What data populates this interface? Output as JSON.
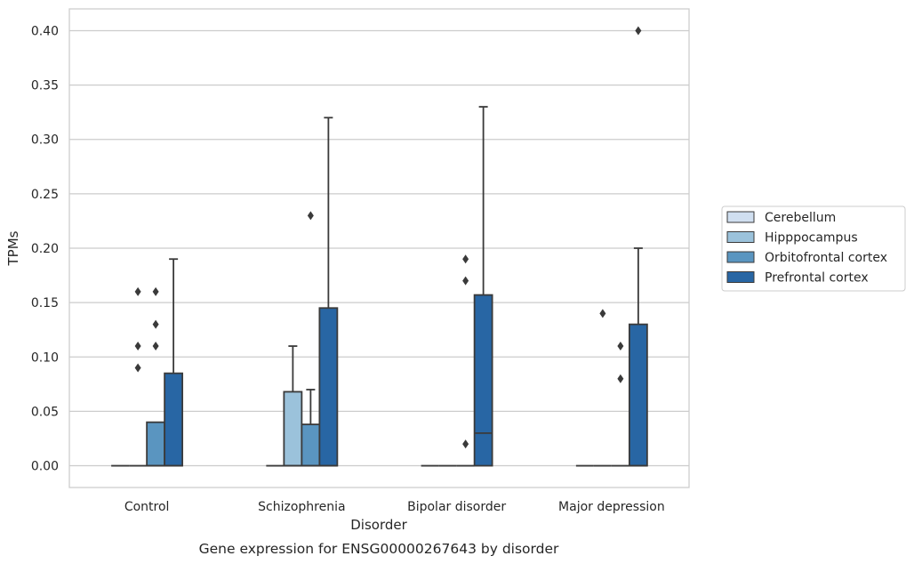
{
  "chart_data": {
    "type": "box",
    "caption": "Gene expression for ENSG00000267643 by disorder",
    "xlabel": "Disorder",
    "ylabel": "TPMs",
    "ylim": [
      -0.02,
      0.42
    ],
    "yticks": [
      "0.00",
      "0.05",
      "0.10",
      "0.15",
      "0.20",
      "0.25",
      "0.30",
      "0.35",
      "0.40"
    ],
    "grid": true,
    "legend_position": "right, outside plot",
    "categories": [
      "Control",
      "Schizophrenia",
      "Bipolar disorder",
      "Major depression"
    ],
    "series": [
      {
        "name": "Cerebellum",
        "color": "#d0dff0",
        "boxes": [
          {
            "category": "Control",
            "q1": 0.0,
            "median": 0.0,
            "q3": 0.0,
            "whisker_low": 0.0,
            "whisker_high": 0.0,
            "outliers": []
          },
          {
            "category": "Schizophrenia",
            "q1": 0.0,
            "median": 0.0,
            "q3": 0.0,
            "whisker_low": 0.0,
            "whisker_high": 0.0,
            "outliers": []
          },
          {
            "category": "Bipolar disorder",
            "q1": 0.0,
            "median": 0.0,
            "q3": 0.0,
            "whisker_low": 0.0,
            "whisker_high": 0.0,
            "outliers": []
          },
          {
            "category": "Major depression",
            "q1": 0.0,
            "median": 0.0,
            "q3": 0.0,
            "whisker_low": 0.0,
            "whisker_high": 0.0,
            "outliers": []
          }
        ]
      },
      {
        "name": "Hipppocampus",
        "color": "#9bc2db",
        "boxes": [
          {
            "category": "Control",
            "q1": 0.0,
            "median": 0.0,
            "q3": 0.0,
            "whisker_low": 0.0,
            "whisker_high": 0.0,
            "outliers": [
              0.09,
              0.11,
              0.16
            ]
          },
          {
            "category": "Schizophrenia",
            "q1": 0.0,
            "median": 0.0,
            "q3": 0.068,
            "whisker_low": 0.0,
            "whisker_high": 0.11,
            "outliers": []
          },
          {
            "category": "Bipolar disorder",
            "q1": 0.0,
            "median": 0.0,
            "q3": 0.0,
            "whisker_low": 0.0,
            "whisker_high": 0.0,
            "outliers": []
          },
          {
            "category": "Major depression",
            "q1": 0.0,
            "median": 0.0,
            "q3": 0.0,
            "whisker_low": 0.0,
            "whisker_high": 0.0,
            "outliers": [
              0.14
            ]
          }
        ]
      },
      {
        "name": "Orbitofrontal cortex",
        "color": "#5a95c0",
        "boxes": [
          {
            "category": "Control",
            "q1": 0.0,
            "median": 0.0,
            "q3": 0.04,
            "whisker_low": 0.0,
            "whisker_high": 0.04,
            "outliers": [
              0.11,
              0.13,
              0.16
            ]
          },
          {
            "category": "Schizophrenia",
            "q1": 0.0,
            "median": 0.0,
            "q3": 0.038,
            "whisker_low": 0.0,
            "whisker_high": 0.07,
            "outliers": [
              0.23
            ]
          },
          {
            "category": "Bipolar disorder",
            "q1": 0.0,
            "median": 0.0,
            "q3": 0.0,
            "whisker_low": 0.0,
            "whisker_high": 0.0,
            "outliers": [
              0.02,
              0.17,
              0.19
            ]
          },
          {
            "category": "Major depression",
            "q1": 0.0,
            "median": 0.0,
            "q3": 0.0,
            "whisker_low": 0.0,
            "whisker_high": 0.0,
            "outliers": [
              0.08,
              0.11
            ]
          }
        ]
      },
      {
        "name": "Prefrontal cortex",
        "color": "#2866a4",
        "boxes": [
          {
            "category": "Control",
            "q1": 0.0,
            "median": 0.0,
            "q3": 0.085,
            "whisker_low": 0.0,
            "whisker_high": 0.19,
            "outliers": []
          },
          {
            "category": "Schizophrenia",
            "q1": 0.0,
            "median": 0.0,
            "q3": 0.145,
            "whisker_low": 0.0,
            "whisker_high": 0.32,
            "outliers": []
          },
          {
            "category": "Bipolar disorder",
            "q1": 0.0,
            "median": 0.03,
            "q3": 0.157,
            "whisker_low": 0.0,
            "whisker_high": 0.33,
            "outliers": []
          },
          {
            "category": "Major depression",
            "q1": 0.0,
            "median": 0.0,
            "q3": 0.13,
            "whisker_low": 0.0,
            "whisker_high": 0.2,
            "outliers": [
              0.4
            ]
          }
        ]
      }
    ]
  }
}
